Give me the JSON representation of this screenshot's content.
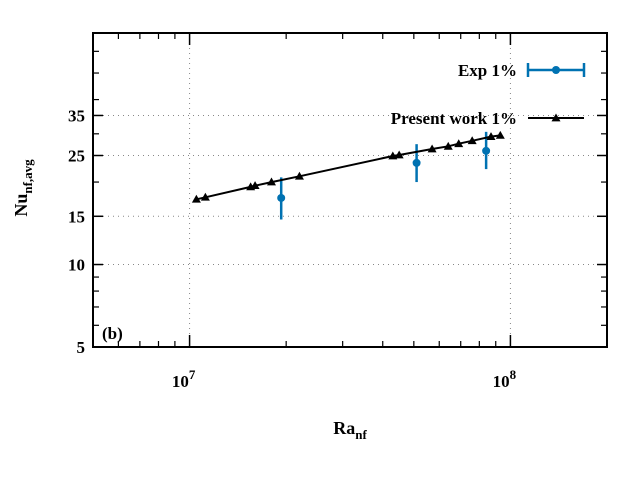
{
  "chart_data": {
    "type": "scatter",
    "panel_label": "(b)",
    "xlabel": {
      "main": "Ra",
      "sub": "nf"
    },
    "ylabel": {
      "main": "Nu",
      "sub": "nf,avg"
    },
    "x_scale": "log",
    "y_scale": "log",
    "xlim": [
      5000000,
      200000000
    ],
    "ylim": [
      5,
      70
    ],
    "x_ticks": [
      {
        "value": 10000000,
        "base": "10",
        "exp": "7"
      },
      {
        "value": 100000000,
        "base": "10",
        "exp": "8"
      }
    ],
    "y_ticks": [
      {
        "value": 5,
        "label": "5"
      },
      {
        "value": 10,
        "label": "10"
      },
      {
        "value": 15,
        "label": "15"
      },
      {
        "value": 25,
        "label": "25"
      },
      {
        "value": 35,
        "label": "35"
      }
    ],
    "grid": true,
    "legend_position": "top-right",
    "series": [
      {
        "name": "Exp 1%",
        "kind": "errorbar",
        "color": "#0072b2",
        "marker": "circle",
        "points": [
          {
            "x": 19300000,
            "y": 17.5,
            "ylow": 14.6,
            "yhigh": 20.8
          },
          {
            "x": 51000000,
            "y": 23.5,
            "ylow": 20.0,
            "yhigh": 27.5
          },
          {
            "x": 84000000,
            "y": 26.0,
            "ylow": 22.3,
            "yhigh": 30.5
          }
        ]
      },
      {
        "name": "Present work 1%",
        "kind": "line-markers",
        "color": "#000000",
        "marker": "triangle",
        "points": [
          {
            "x": 10500000,
            "y": 17.3
          },
          {
            "x": 11200000,
            "y": 17.6
          },
          {
            "x": 15500000,
            "y": 19.2
          },
          {
            "x": 16000000,
            "y": 19.4
          },
          {
            "x": 18000000,
            "y": 20.0
          },
          {
            "x": 22000000,
            "y": 21.0
          },
          {
            "x": 43000000,
            "y": 24.9
          },
          {
            "x": 45000000,
            "y": 25.1
          },
          {
            "x": 57000000,
            "y": 26.4
          },
          {
            "x": 64000000,
            "y": 27.0
          },
          {
            "x": 69000000,
            "y": 27.6
          },
          {
            "x": 76000000,
            "y": 28.3
          },
          {
            "x": 87000000,
            "y": 29.3
          },
          {
            "x": 93000000,
            "y": 29.6
          }
        ]
      }
    ]
  }
}
